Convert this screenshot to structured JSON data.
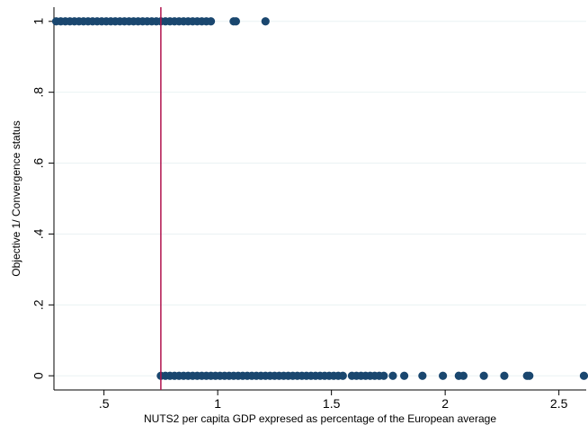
{
  "chart_data": {
    "type": "scatter",
    "title": "",
    "xlabel": "NUTS2 per capita GDP expresed as percentage of the European average",
    "ylabel": "Objective 1/ Convergence status",
    "xlim": [
      0.28,
      2.62
    ],
    "ylim": [
      -0.04,
      1.04
    ],
    "x_ticks": [
      {
        "value": 0.5,
        "label": ".5"
      },
      {
        "value": 1,
        "label": "1"
      },
      {
        "value": 1.5,
        "label": "1.5"
      },
      {
        "value": 2,
        "label": "2"
      },
      {
        "value": 2.5,
        "label": "2.5"
      }
    ],
    "y_ticks": [
      {
        "value": 0,
        "label": "0"
      },
      {
        "value": 0.2,
        "label": ".2"
      },
      {
        "value": 0.4,
        "label": ".4"
      },
      {
        "value": 0.6,
        "label": ".6"
      },
      {
        "value": 0.8,
        "label": ".8"
      },
      {
        "value": 1,
        "label": "1"
      }
    ],
    "grid": true,
    "reference_line": {
      "x": 0.75,
      "color": "#b0124c"
    },
    "marker_color": "#1a476f",
    "series": [
      {
        "values_y": 1,
        "x": [
          0.29,
          0.31,
          0.33,
          0.35,
          0.37,
          0.39,
          0.41,
          0.43,
          0.45,
          0.47,
          0.49,
          0.51,
          0.53,
          0.55,
          0.57,
          0.59,
          0.61,
          0.63,
          0.65,
          0.67,
          0.69,
          0.71,
          0.73,
          0.75,
          0.77,
          0.79,
          0.81,
          0.83,
          0.85,
          0.87,
          0.89,
          0.91,
          0.93,
          0.95,
          0.97,
          1.07,
          1.08,
          1.21
        ]
      },
      {
        "values_y": 0,
        "x": [
          0.75,
          0.77,
          0.79,
          0.81,
          0.83,
          0.85,
          0.87,
          0.89,
          0.91,
          0.93,
          0.95,
          0.97,
          0.99,
          1.01,
          1.03,
          1.05,
          1.07,
          1.09,
          1.11,
          1.13,
          1.15,
          1.17,
          1.19,
          1.21,
          1.23,
          1.25,
          1.27,
          1.29,
          1.31,
          1.33,
          1.35,
          1.37,
          1.39,
          1.41,
          1.43,
          1.45,
          1.47,
          1.49,
          1.51,
          1.53,
          1.55,
          1.59,
          1.61,
          1.63,
          1.65,
          1.67,
          1.69,
          1.71,
          1.73,
          1.77,
          1.82,
          1.9,
          1.99,
          2.06,
          2.08,
          2.17,
          2.26,
          2.36,
          2.37,
          2.61
        ]
      }
    ]
  }
}
